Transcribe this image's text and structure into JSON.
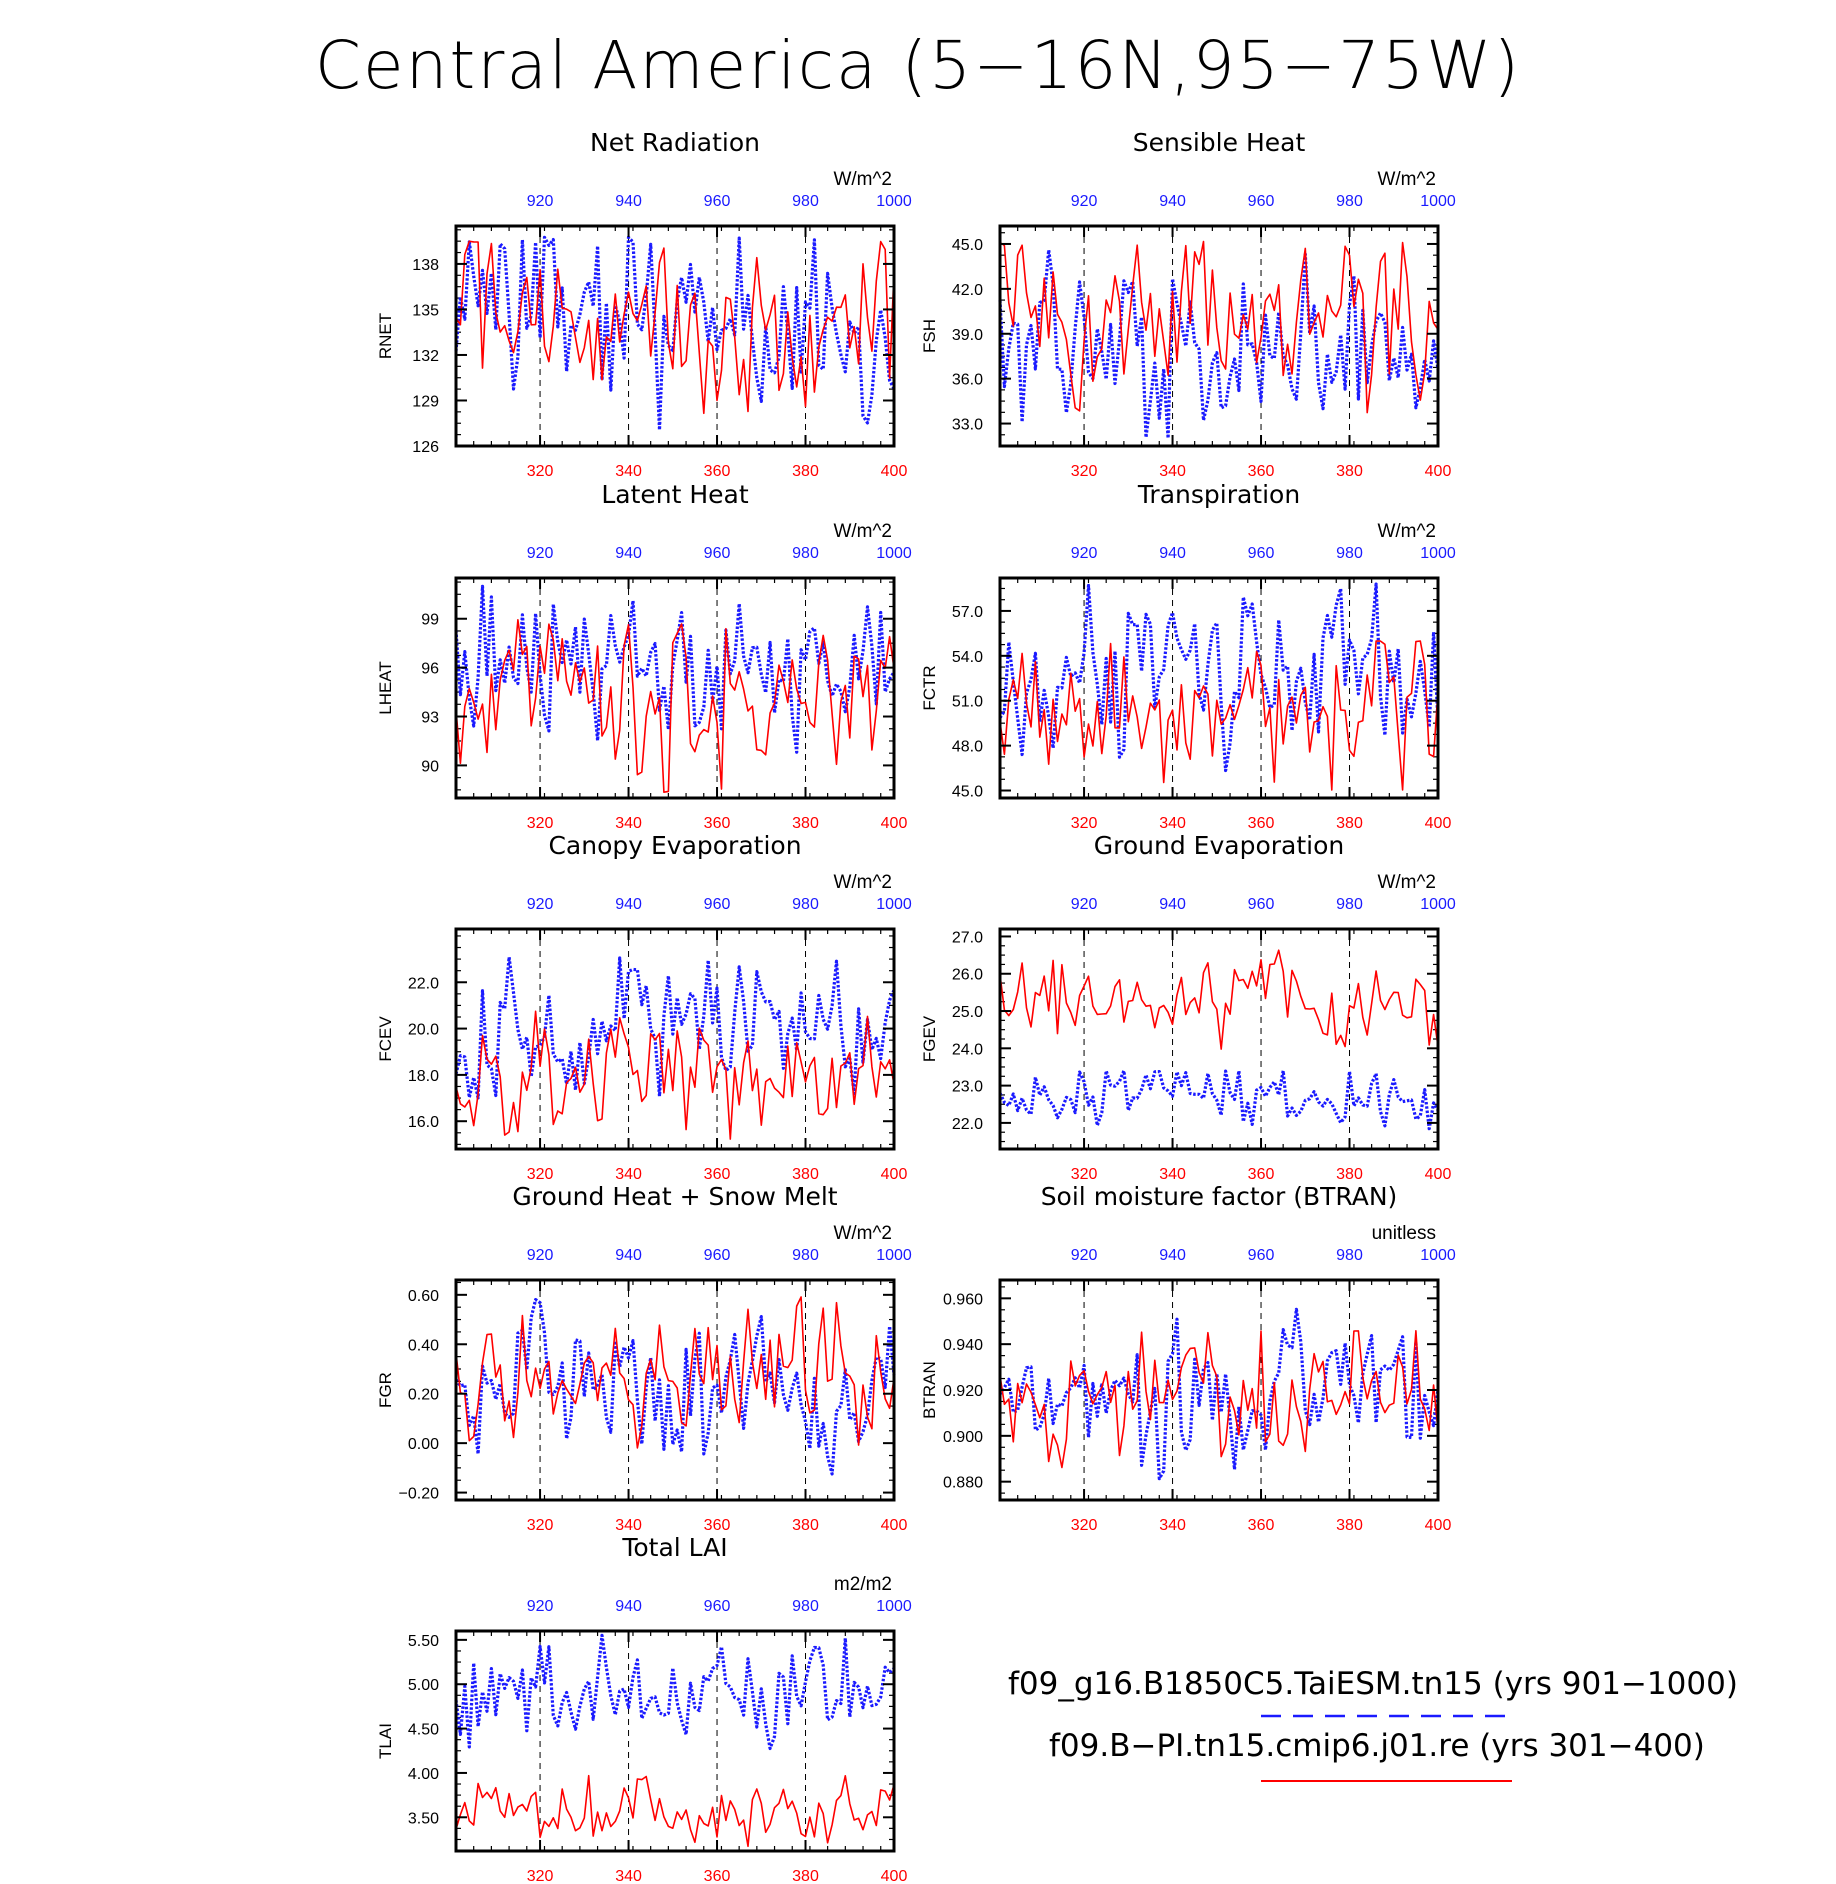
{
  "title": "Central America (5-16N,95-75W)",
  "colors": {
    "run_a": "#1a1aff",
    "run_b": "#ff0000",
    "axis": "#000000"
  },
  "legend": {
    "run_a": "f09_g16.B1850C5.TaiESM.tn15 (yrs 901-1000)",
    "run_b": "f09.B-PI.tn15.cmip6.j01.re (yrs 301-400)"
  },
  "axes_common": {
    "bottom_ticks": [
      "320",
      "340",
      "360",
      "380",
      "400"
    ],
    "top_ticks": [
      "920",
      "940",
      "960",
      "980",
      "1000"
    ],
    "x_bottom_range": [
      301,
      400
    ],
    "x_top_range": [
      901,
      1000
    ],
    "dashed_verticals_at": [
      320,
      340,
      360,
      380
    ]
  },
  "chart_data": [
    {
      "type": "line",
      "title": "Net Radiation",
      "ylabel": "RNET",
      "unit": "W/m^2",
      "ylim": [
        126,
        140.5
      ],
      "yticks": [
        "126",
        "129",
        "132",
        "135",
        "138"
      ],
      "ytick_values": [
        126,
        129,
        132,
        135,
        138
      ],
      "series": [
        {
          "name": "f09_g16.B1850C5.TaiESM.tn15 (yrs 901-1000)",
          "color": "#1a1aff",
          "style": "dotted",
          "base": 134.5,
          "amp": 3.2,
          "lo": 127,
          "hi": 139.8,
          "seed": 11
        },
        {
          "name": "f09.B-PI.tn15.cmip6.j01.re (yrs 301-400)",
          "color": "#ff0000",
          "style": "solid",
          "base": 134.0,
          "amp": 2.8,
          "lo": 126.8,
          "hi": 139.5,
          "seed": 12
        }
      ]
    },
    {
      "type": "line",
      "title": "Sensible Heat",
      "ylabel": "FSH",
      "unit": "W/m^2",
      "ylim": [
        31.5,
        46.2
      ],
      "yticks": [
        "33.0",
        "36.0",
        "39.0",
        "42.0",
        "45.0"
      ],
      "ytick_values": [
        33,
        36,
        39,
        42,
        45
      ],
      "series": [
        {
          "name": "f09_g16.B1850C5.TaiESM.tn15 (yrs 901-1000)",
          "color": "#1a1aff",
          "style": "dotted",
          "base": 38.0,
          "amp": 2.5,
          "lo": 32.0,
          "hi": 45.3,
          "seed": 21
        },
        {
          "name": "f09.B-PI.tn15.cmip6.j01.re (yrs 301-400)",
          "color": "#ff0000",
          "style": "solid",
          "base": 39.5,
          "amp": 2.6,
          "lo": 33.7,
          "hi": 45.2,
          "seed": 22
        }
      ]
    },
    {
      "type": "line",
      "title": "Latent Heat",
      "ylabel": "LHEAT",
      "unit": "W/m^2",
      "ylim": [
        88,
        101.5
      ],
      "yticks": [
        "90",
        "93",
        "96",
        "99"
      ],
      "ytick_values": [
        90,
        93,
        96,
        99
      ],
      "series": [
        {
          "name": "f09_g16.B1850C5.TaiESM.tn15 (yrs 901-1000)",
          "color": "#1a1aff",
          "style": "dotted",
          "base": 96.0,
          "amp": 2.1,
          "lo": 88.6,
          "hi": 101.0,
          "seed": 31
        },
        {
          "name": "f09.B-PI.tn15.cmip6.j01.re (yrs 301-400)",
          "color": "#ff0000",
          "style": "solid",
          "base": 94.0,
          "amp": 2.2,
          "lo": 88.3,
          "hi": 99.0,
          "seed": 32
        }
      ]
    },
    {
      "type": "line",
      "title": "Transpiration",
      "ylabel": "FCTR",
      "unit": "W/m^2",
      "ylim": [
        44.5,
        59.2
      ],
      "yticks": [
        "45.0",
        "48.0",
        "51.0",
        "54.0",
        "57.0"
      ],
      "ytick_values": [
        45,
        48,
        51,
        54,
        57
      ],
      "series": [
        {
          "name": "f09_g16.B1850C5.TaiESM.tn15 (yrs 901-1000)",
          "color": "#1a1aff",
          "style": "dotted",
          "base": 53.0,
          "amp": 2.4,
          "lo": 46.3,
          "hi": 58.8,
          "seed": 41
        },
        {
          "name": "f09.B-PI.tn15.cmip6.j01.re (yrs 301-400)",
          "color": "#ff0000",
          "style": "solid",
          "base": 50.5,
          "amp": 2.0,
          "lo": 45.0,
          "hi": 55.0,
          "seed": 42
        }
      ]
    },
    {
      "type": "line",
      "title": "Canopy Evaporation",
      "ylabel": "FCEV",
      "unit": "W/m^2",
      "ylim": [
        14.8,
        24.3
      ],
      "yticks": [
        "16.0",
        "18.0",
        "20.0",
        "22.0"
      ],
      "ytick_values": [
        16,
        18,
        20,
        22
      ],
      "series": [
        {
          "name": "f09_g16.B1850C5.TaiESM.tn15 (yrs 901-1000)",
          "color": "#1a1aff",
          "style": "dotted",
          "base": 20.0,
          "amp": 1.3,
          "lo": 17.0,
          "hi": 23.4,
          "seed": 51
        },
        {
          "name": "f09.B-PI.tn15.cmip6.j01.re (yrs 301-400)",
          "color": "#ff0000",
          "style": "solid",
          "base": 18.2,
          "amp": 1.1,
          "lo": 14.9,
          "hi": 20.8,
          "seed": 52
        }
      ]
    },
    {
      "type": "line",
      "title": "Ground Evaporation",
      "ylabel": "FGEV",
      "unit": "W/m^2",
      "ylim": [
        21.3,
        27.2
      ],
      "yticks": [
        "22.0",
        "23.0",
        "24.0",
        "25.0",
        "26.0",
        "27.0"
      ],
      "ytick_values": [
        22,
        23,
        24,
        25,
        26,
        27
      ],
      "series": [
        {
          "name": "f09_g16.B1850C5.TaiESM.tn15 (yrs 901-1000)",
          "color": "#1a1aff",
          "style": "dotted",
          "base": 22.6,
          "amp": 0.4,
          "lo": 21.6,
          "hi": 23.4,
          "seed": 61
        },
        {
          "name": "f09.B-PI.tn15.cmip6.j01.re (yrs 301-400)",
          "color": "#ff0000",
          "style": "solid",
          "base": 25.3,
          "amp": 0.5,
          "lo": 23.6,
          "hi": 27.0,
          "seed": 62
        }
      ]
    },
    {
      "type": "line",
      "title": "Ground Heat + Snow Melt",
      "ylabel": "FGR",
      "unit": "W/m^2",
      "ylim": [
        -0.23,
        0.66
      ],
      "yticks": [
        "-0.20",
        "0.00",
        "0.20",
        "0.40",
        "0.60"
      ],
      "ytick_values": [
        -0.2,
        0.0,
        0.2,
        0.4,
        0.6
      ],
      "series": [
        {
          "name": "f09_g16.B1850C5.TaiESM.tn15 (yrs 901-1000)",
          "color": "#1a1aff",
          "style": "dotted",
          "base": 0.22,
          "amp": 0.13,
          "lo": -0.2,
          "hi": 0.62,
          "seed": 71
        },
        {
          "name": "f09.B-PI.tn15.cmip6.j01.re (yrs 301-400)",
          "color": "#ff0000",
          "style": "solid",
          "base": 0.24,
          "amp": 0.11,
          "lo": -0.05,
          "hi": 0.61,
          "seed": 72
        }
      ]
    },
    {
      "type": "line",
      "title": "Soil moisture factor (BTRAN)",
      "ylabel": "BTRAN",
      "unit": "unitless",
      "ylim": [
        0.872,
        0.968
      ],
      "yticks": [
        "0.880",
        "0.900",
        "0.920",
        "0.940",
        "0.960"
      ],
      "ytick_values": [
        0.88,
        0.9,
        0.92,
        0.94,
        0.96
      ],
      "series": [
        {
          "name": "f09_g16.B1850C5.TaiESM.tn15 (yrs 901-1000)",
          "color": "#1a1aff",
          "style": "dotted",
          "base": 0.917,
          "amp": 0.013,
          "lo": 0.877,
          "hi": 0.964,
          "seed": 81
        },
        {
          "name": "f09.B-PI.tn15.cmip6.j01.re (yrs 301-400)",
          "color": "#ff0000",
          "style": "solid",
          "base": 0.915,
          "amp": 0.012,
          "lo": 0.882,
          "hi": 0.946,
          "seed": 82
        }
      ]
    },
    {
      "type": "line",
      "title": "Total LAI",
      "ylabel": "TLAI",
      "unit": "m2/m2",
      "ylim": [
        3.12,
        5.6
      ],
      "yticks": [
        "3.50",
        "4.00",
        "4.50",
        "5.00",
        "5.50"
      ],
      "ytick_values": [
        3.5,
        4.0,
        4.5,
        5.0,
        5.5
      ],
      "series": [
        {
          "name": "f09_g16.B1850C5.TaiESM.tn15 (yrs 901-1000)",
          "color": "#1a1aff",
          "style": "dotted",
          "base": 4.85,
          "amp": 0.25,
          "lo": 3.93,
          "hi": 5.55,
          "seed": 91
        },
        {
          "name": "f09.B-PI.tn15.cmip6.j01.re (yrs 301-400)",
          "color": "#ff0000",
          "style": "solid",
          "base": 3.6,
          "amp": 0.16,
          "lo": 3.17,
          "hi": 3.97,
          "seed": 92
        }
      ]
    }
  ]
}
